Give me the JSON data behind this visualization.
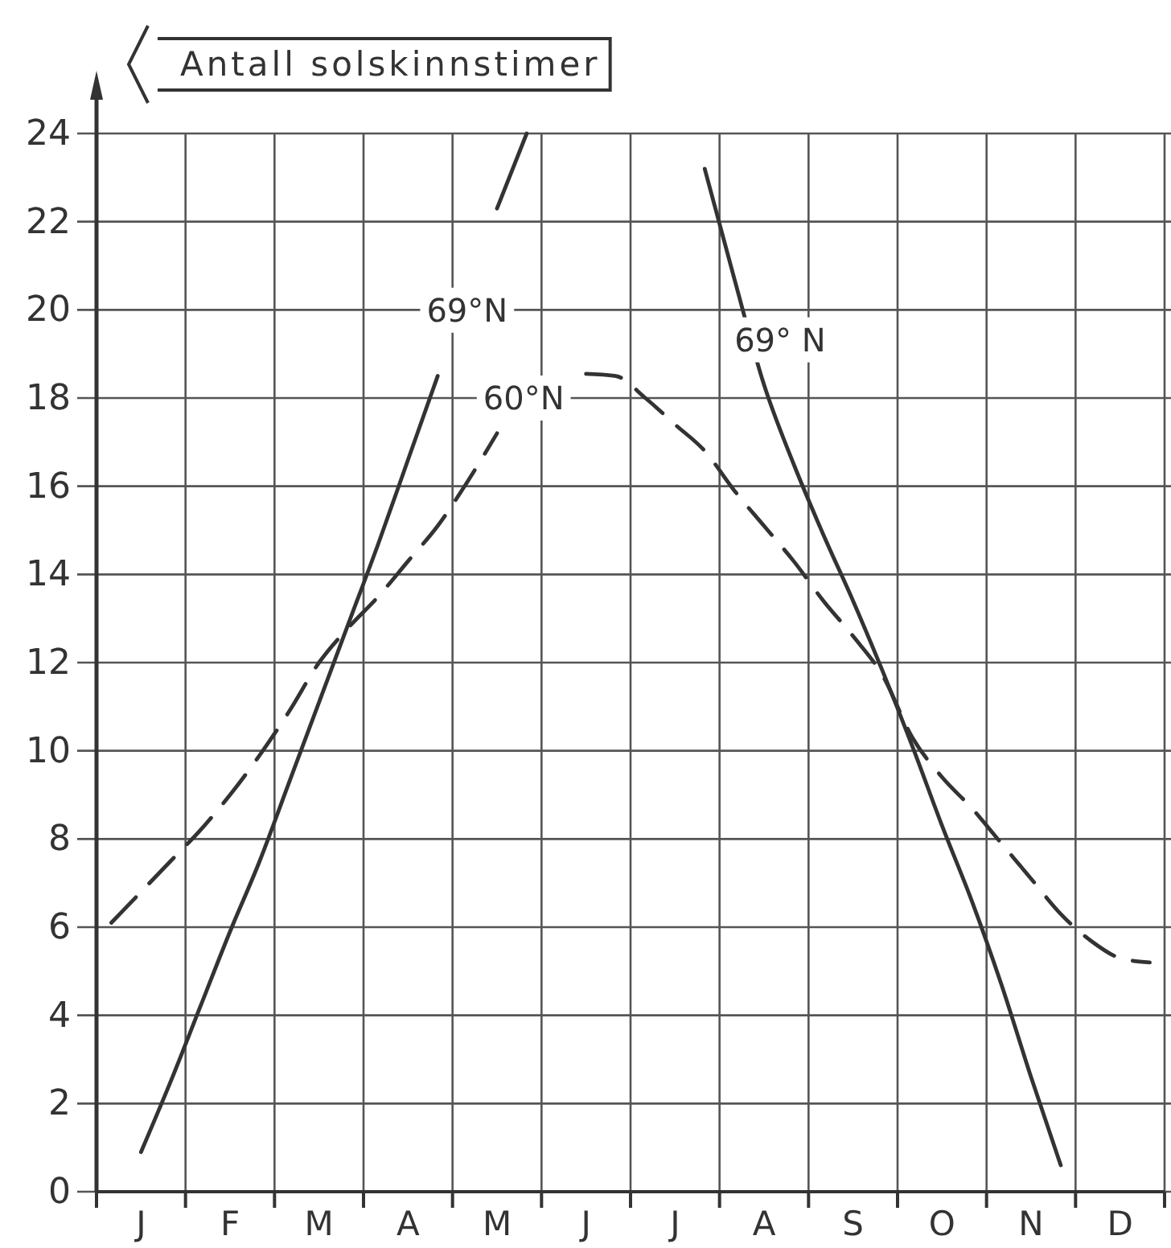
{
  "chart_data": {
    "type": "line",
    "ylabel": "Antall solskinnstimer",
    "categories": [
      null,
      "J",
      null,
      null,
      "F",
      null,
      null,
      "M",
      null,
      null,
      "A",
      null,
      null,
      "M",
      null,
      null,
      "J",
      null,
      null,
      "J",
      null,
      null,
      "A",
      null,
      null,
      "S",
      null,
      null,
      "O",
      null,
      null,
      "N",
      null,
      null,
      "D",
      null
    ],
    "ylim": [
      0,
      24
    ],
    "yticks": [
      0,
      2,
      4,
      6,
      8,
      10,
      12,
      14,
      16,
      18,
      20,
      22,
      24
    ],
    "grid": true,
    "series": [
      {
        "color": "#333333",
        "line_style": "solid",
        "values": [
          null,
          0.9,
          2.5,
          4.2,
          5.9,
          7.5,
          9.3,
          11.1,
          12.9,
          14.7,
          16.6,
          18.5,
          null,
          22.3,
          24,
          null,
          null,
          null,
          null,
          null,
          23.2,
          20.7,
          18.3,
          16.5,
          14.9,
          13.4,
          11.8,
          10.1,
          8.3,
          6.6,
          4.7,
          2.6,
          0.6,
          null,
          null,
          null
        ]
      },
      {
        "color": "#333333",
        "line_style": "dashed",
        "values": [
          6.1,
          6.8,
          7.5,
          8.2,
          9.0,
          9.9,
          10.9,
          12,
          12.8,
          13.5,
          14.3,
          15.1,
          16.1,
          17.2,
          null,
          null,
          18.55,
          18.5,
          18.0,
          17.4,
          16.8,
          15.9,
          15.1,
          14.3,
          13.4,
          12.6,
          11.7,
          10.3,
          9.4,
          8.7,
          7.9,
          7.1,
          6.3,
          5.7,
          5.3,
          5.2
        ]
      }
    ],
    "annotations": [
      "69°N",
      "69° N",
      "60°N"
    ]
  }
}
